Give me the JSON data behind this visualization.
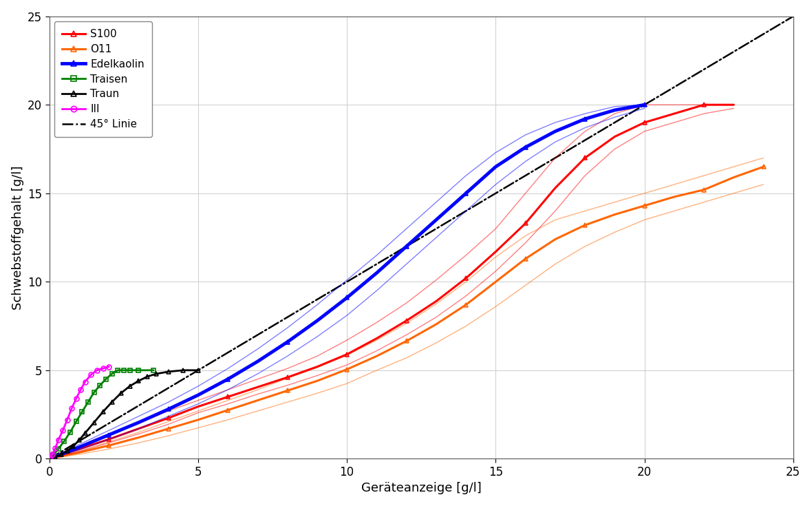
{
  "title": "",
  "xlabel": "Geräteanzeige [g/l]",
  "ylabel": "Schwebstoffgehalt [g/l]",
  "xlim": [
    0,
    25
  ],
  "ylim": [
    0,
    25
  ],
  "xticks": [
    0,
    5,
    10,
    15,
    20,
    25
  ],
  "yticks": [
    0,
    5,
    10,
    15,
    20,
    25
  ],
  "line45_color": "#000000",
  "series": {
    "S100": {
      "color": "#ff0000",
      "marker": "^",
      "linewidth": 2.2,
      "x_main": [
        0,
        1,
        2,
        3,
        4,
        5,
        6,
        7,
        8,
        9,
        10,
        11,
        12,
        13,
        14,
        15,
        16,
        17,
        18,
        19,
        20,
        21,
        22,
        23
      ],
      "y_main": [
        0,
        0.55,
        1.1,
        1.7,
        2.3,
        2.95,
        3.5,
        4.05,
        4.6,
        5.2,
        5.9,
        6.8,
        7.8,
        8.9,
        10.2,
        11.7,
        13.3,
        15.3,
        17.0,
        18.2,
        19.0,
        19.5,
        20.0,
        20.0
      ],
      "x_upper": [
        0,
        1,
        2,
        3,
        4,
        5,
        6,
        7,
        8,
        9,
        10,
        11,
        12,
        13,
        14,
        15,
        16,
        17,
        18,
        19,
        20,
        21,
        22,
        23
      ],
      "y_upper": [
        0,
        0.7,
        1.3,
        2.0,
        2.7,
        3.3,
        3.9,
        4.5,
        5.1,
        5.8,
        6.7,
        7.7,
        8.8,
        10.1,
        11.5,
        13.0,
        15.0,
        17.0,
        18.5,
        19.5,
        20.0,
        20.0,
        20.0,
        20.0
      ],
      "x_lower": [
        0,
        1,
        2,
        3,
        4,
        5,
        6,
        7,
        8,
        9,
        10,
        11,
        12,
        13,
        14,
        15,
        16,
        17,
        18,
        19,
        20,
        21,
        22,
        23
      ],
      "y_lower": [
        0,
        0.4,
        0.9,
        1.4,
        1.95,
        2.6,
        3.1,
        3.65,
        4.15,
        4.7,
        5.3,
        6.1,
        7.0,
        8.0,
        9.2,
        10.6,
        12.2,
        14.0,
        16.0,
        17.5,
        18.5,
        19.0,
        19.5,
        19.8
      ]
    },
    "O11": {
      "color": "#ff6600",
      "marker": "^",
      "linewidth": 2.2,
      "x_main": [
        0,
        1,
        2,
        3,
        4,
        5,
        6,
        7,
        8,
        9,
        10,
        11,
        12,
        13,
        14,
        15,
        16,
        17,
        18,
        19,
        20,
        21,
        22,
        23,
        24
      ],
      "y_main": [
        0,
        0.35,
        0.75,
        1.2,
        1.7,
        2.2,
        2.75,
        3.3,
        3.85,
        4.4,
        5.05,
        5.8,
        6.65,
        7.6,
        8.7,
        10.0,
        11.3,
        12.4,
        13.2,
        13.8,
        14.3,
        14.8,
        15.2,
        15.9,
        16.5
      ],
      "x_upper": [
        0,
        1,
        2,
        3,
        4,
        5,
        6,
        7,
        8,
        9,
        10,
        11,
        12,
        13,
        14,
        15,
        16,
        17,
        18,
        19,
        20,
        21,
        22,
        23,
        24
      ],
      "y_upper": [
        0,
        0.45,
        0.95,
        1.5,
        2.1,
        2.7,
        3.3,
        3.9,
        4.55,
        5.15,
        5.85,
        6.7,
        7.65,
        8.75,
        10.0,
        11.4,
        12.6,
        13.5,
        14.0,
        14.5,
        15.0,
        15.5,
        16.0,
        16.5,
        17.0
      ],
      "x_lower": [
        0,
        1,
        2,
        3,
        4,
        5,
        6,
        7,
        8,
        9,
        10,
        11,
        12,
        13,
        14,
        15,
        16,
        17,
        18,
        19,
        20,
        21,
        22,
        23,
        24
      ],
      "y_lower": [
        0,
        0.25,
        0.55,
        0.9,
        1.3,
        1.75,
        2.2,
        2.7,
        3.2,
        3.7,
        4.25,
        5.0,
        5.7,
        6.55,
        7.5,
        8.6,
        9.8,
        11.0,
        12.0,
        12.8,
        13.5,
        14.0,
        14.5,
        15.0,
        15.5
      ]
    },
    "Edelkaolin": {
      "color": "#0000ff",
      "marker": "^",
      "linewidth": 3.5,
      "x_main": [
        0,
        1,
        2,
        3,
        4,
        5,
        6,
        7,
        8,
        9,
        10,
        11,
        12,
        13,
        14,
        15,
        16,
        17,
        18,
        19,
        20
      ],
      "y_main": [
        0,
        0.65,
        1.35,
        2.05,
        2.8,
        3.6,
        4.5,
        5.5,
        6.6,
        7.8,
        9.1,
        10.5,
        12.0,
        13.5,
        15.0,
        16.5,
        17.6,
        18.5,
        19.2,
        19.7,
        20.0
      ],
      "x_upper": [
        0,
        1,
        2,
        3,
        4,
        5,
        6,
        7,
        8,
        9,
        10,
        11,
        12,
        13,
        14,
        15,
        16,
        17,
        18,
        19,
        20
      ],
      "y_upper": [
        0,
        0.8,
        1.6,
        2.4,
        3.2,
        4.1,
        5.1,
        6.2,
        7.4,
        8.7,
        10.1,
        11.5,
        13.0,
        14.5,
        16.0,
        17.3,
        18.3,
        19.0,
        19.5,
        19.9,
        20.0
      ],
      "x_lower": [
        0,
        1,
        2,
        3,
        4,
        5,
        6,
        7,
        8,
        9,
        10,
        11,
        12,
        13,
        14,
        15,
        16,
        17,
        18,
        19,
        20
      ],
      "y_lower": [
        0,
        0.5,
        1.1,
        1.7,
        2.4,
        3.1,
        3.9,
        4.8,
        5.8,
        6.9,
        8.1,
        9.5,
        11.0,
        12.5,
        14.0,
        15.5,
        16.8,
        17.9,
        18.7,
        19.3,
        19.8
      ]
    },
    "Traisen": {
      "color": "#008000",
      "marker": "s",
      "linewidth": 2.0,
      "x_main": [
        0,
        0.15,
        0.3,
        0.5,
        0.7,
        0.9,
        1.1,
        1.3,
        1.5,
        1.7,
        1.9,
        2.1,
        2.3,
        2.5,
        2.7,
        3.0,
        3.5
      ],
      "y_main": [
        0,
        0.25,
        0.55,
        1.0,
        1.5,
        2.1,
        2.65,
        3.2,
        3.75,
        4.15,
        4.5,
        4.8,
        5.0,
        5.0,
        5.0,
        5.0,
        5.0
      ],
      "x_upper": null,
      "y_upper": null,
      "x_lower": null,
      "y_lower": null
    },
    "Traun": {
      "color": "#000000",
      "marker": "^",
      "linewidth": 2.0,
      "x_main": [
        0,
        0.2,
        0.4,
        0.6,
        0.8,
        1.0,
        1.2,
        1.5,
        1.8,
        2.1,
        2.4,
        2.7,
        3.0,
        3.3,
        3.6,
        4.0,
        4.5,
        5.0
      ],
      "y_main": [
        0,
        0.1,
        0.25,
        0.45,
        0.7,
        1.05,
        1.45,
        2.05,
        2.65,
        3.2,
        3.7,
        4.1,
        4.4,
        4.65,
        4.8,
        4.92,
        5.0,
        5.0
      ],
      "x_upper": null,
      "y_upper": null,
      "x_lower": null,
      "y_lower": null
    },
    "III": {
      "color": "#ff00ff",
      "marker": "o",
      "linewidth": 2.0,
      "x_main": [
        0,
        0.1,
        0.2,
        0.3,
        0.45,
        0.6,
        0.75,
        0.9,
        1.05,
        1.2,
        1.4,
        1.6,
        1.8,
        2.0
      ],
      "y_main": [
        0,
        0.25,
        0.6,
        1.05,
        1.6,
        2.2,
        2.85,
        3.4,
        3.9,
        4.35,
        4.75,
        5.0,
        5.1,
        5.2
      ],
      "x_upper": null,
      "y_upper": null,
      "x_lower": null,
      "y_lower": null
    }
  },
  "legend_labels": [
    "S100",
    "O11",
    "Edelkaolin",
    "Traisen",
    "Traun",
    "III",
    "45° Linie"
  ],
  "legend_colors": [
    "#ff0000",
    "#ff6600",
    "#0000ff",
    "#008000",
    "#000000",
    "#ff00ff",
    "#000000"
  ],
  "legend_markers": [
    "^",
    "^",
    "^",
    "s",
    "^",
    "o",
    null
  ],
  "legend_marker_sizes": [
    6,
    6,
    6,
    6,
    6,
    6,
    0
  ],
  "figsize": [
    11.8,
    7.35
  ],
  "dpi": 100
}
